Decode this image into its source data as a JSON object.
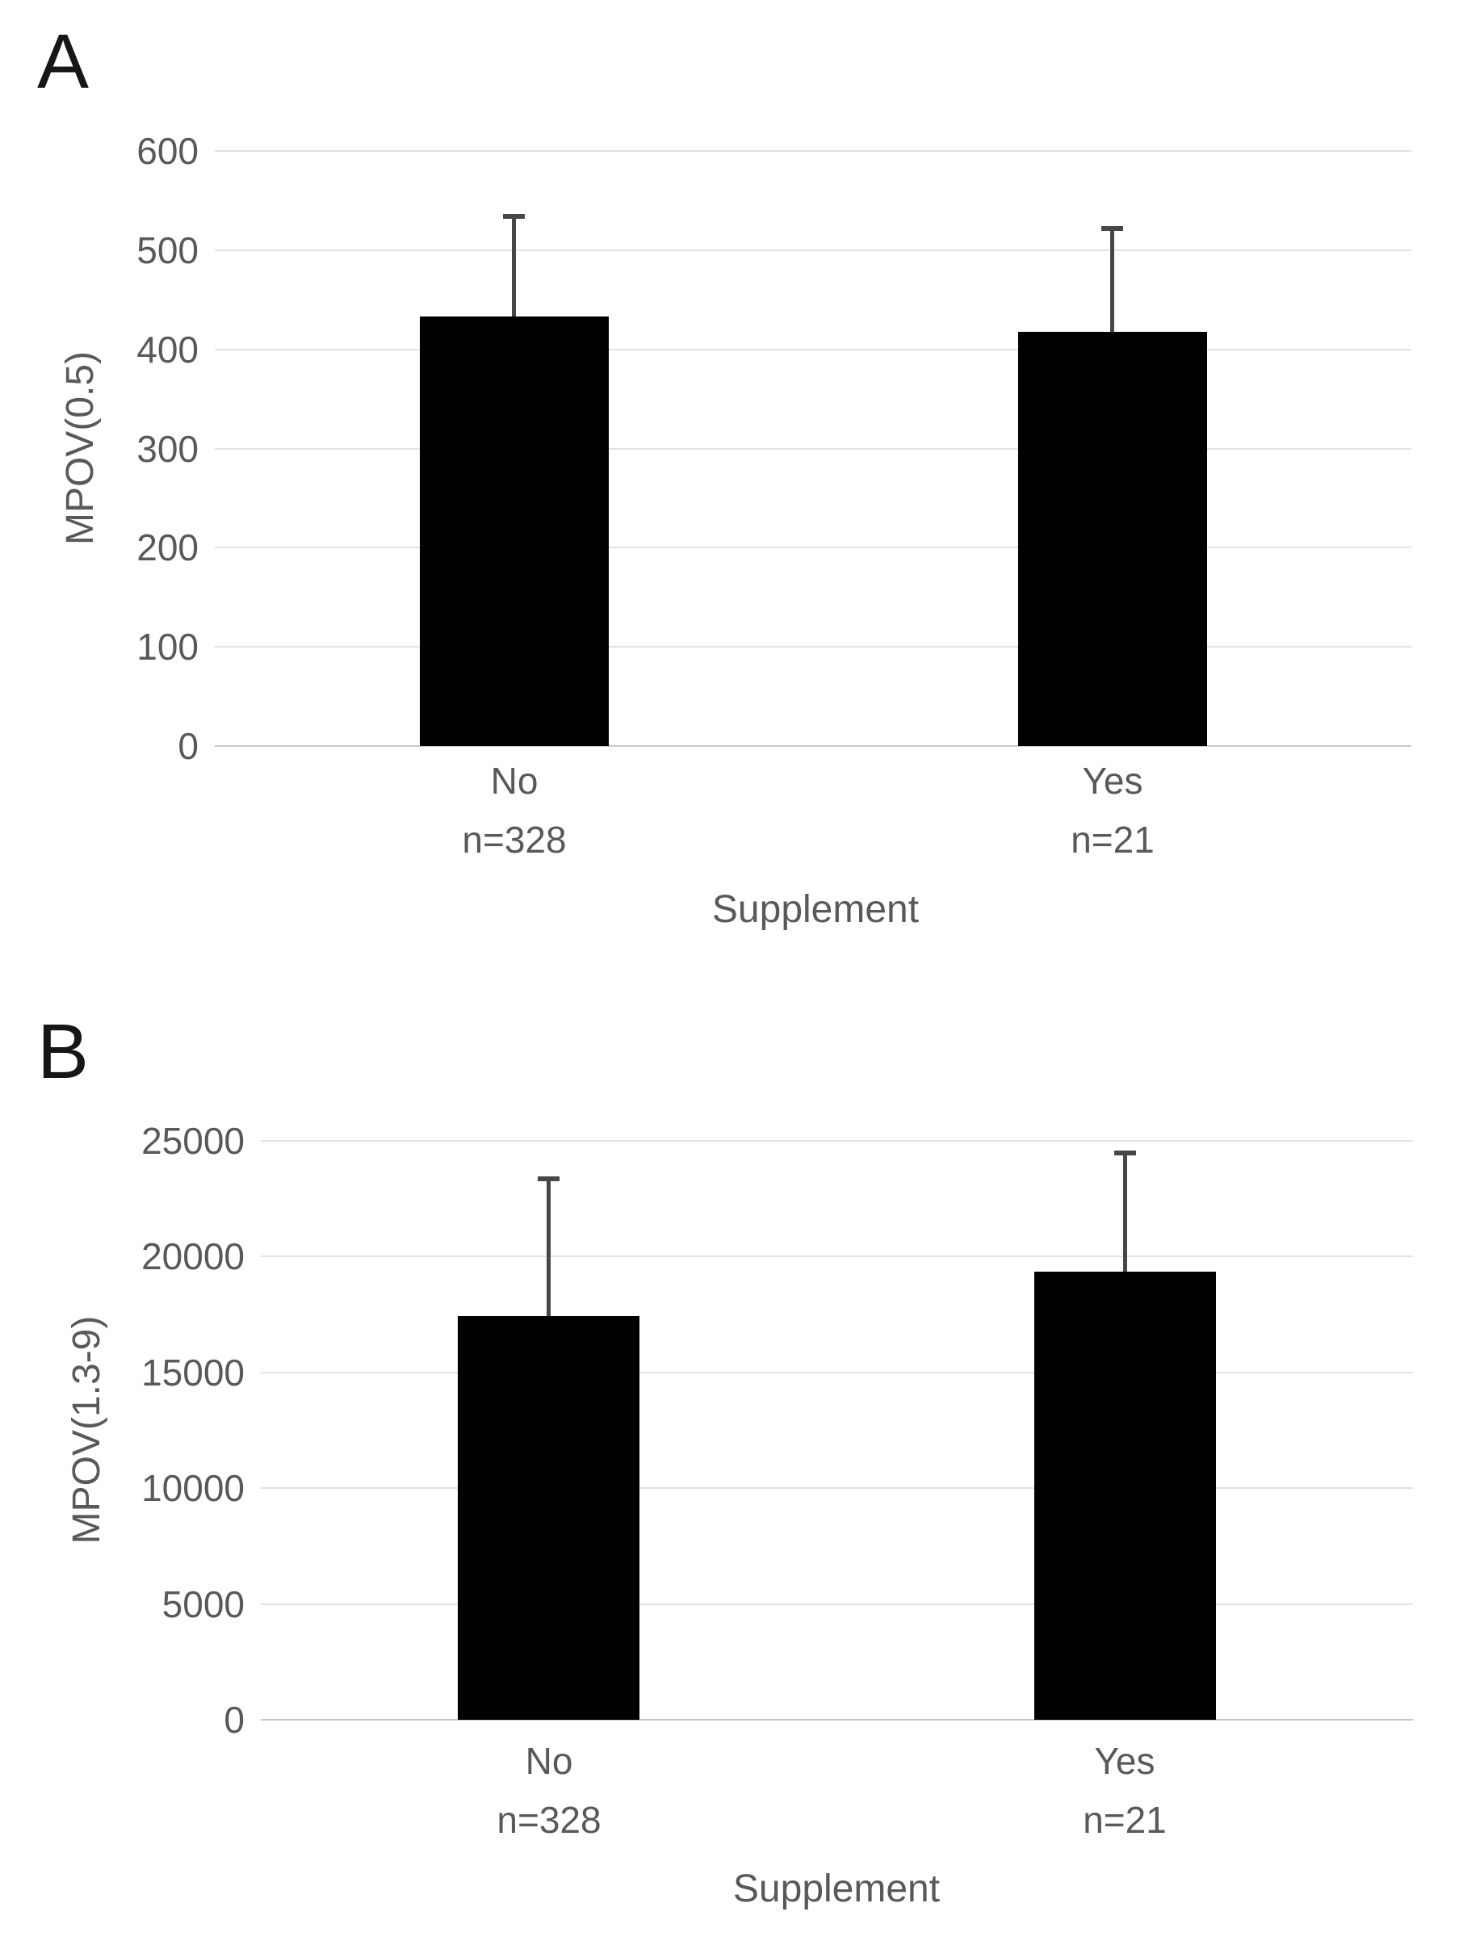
{
  "figure": {
    "background": "#ffffff",
    "panels": [
      "A",
      "B"
    ]
  },
  "colors": {
    "bar": "#000000",
    "error_bar": "#474747",
    "gridline": "#e2e2e2",
    "axis_line": "#c9c9c9",
    "text": "#595959",
    "panel_letter": "#161616"
  },
  "chart_data": [
    {
      "type": "bar",
      "panel_label": "A",
      "ylabel": "MPOV(0.5)",
      "xlabel": "Supplement",
      "categories": [
        "No",
        "Yes"
      ],
      "category_sublabels": [
        "n=328",
        "n=21"
      ],
      "values": [
        433,
        418
      ],
      "error_upper": [
        535,
        523
      ],
      "ylim": [
        0,
        600
      ],
      "ytick_step": 100,
      "yticks": [
        0,
        100,
        200,
        300,
        400,
        500,
        600
      ],
      "grid": true,
      "legend": "none"
    },
    {
      "type": "bar",
      "panel_label": "B",
      "ylabel": "MPOV(1.3-9)",
      "xlabel": "Supplement",
      "categories": [
        "No",
        "Yes"
      ],
      "category_sublabels": [
        "n=328",
        "n=21"
      ],
      "values": [
        17450,
        19350
      ],
      "error_upper": [
        23400,
        24500
      ],
      "ylim": [
        0,
        25000
      ],
      "ytick_step": 5000,
      "yticks": [
        0,
        5000,
        10000,
        15000,
        20000,
        25000
      ],
      "grid": true,
      "legend": "none"
    }
  ]
}
